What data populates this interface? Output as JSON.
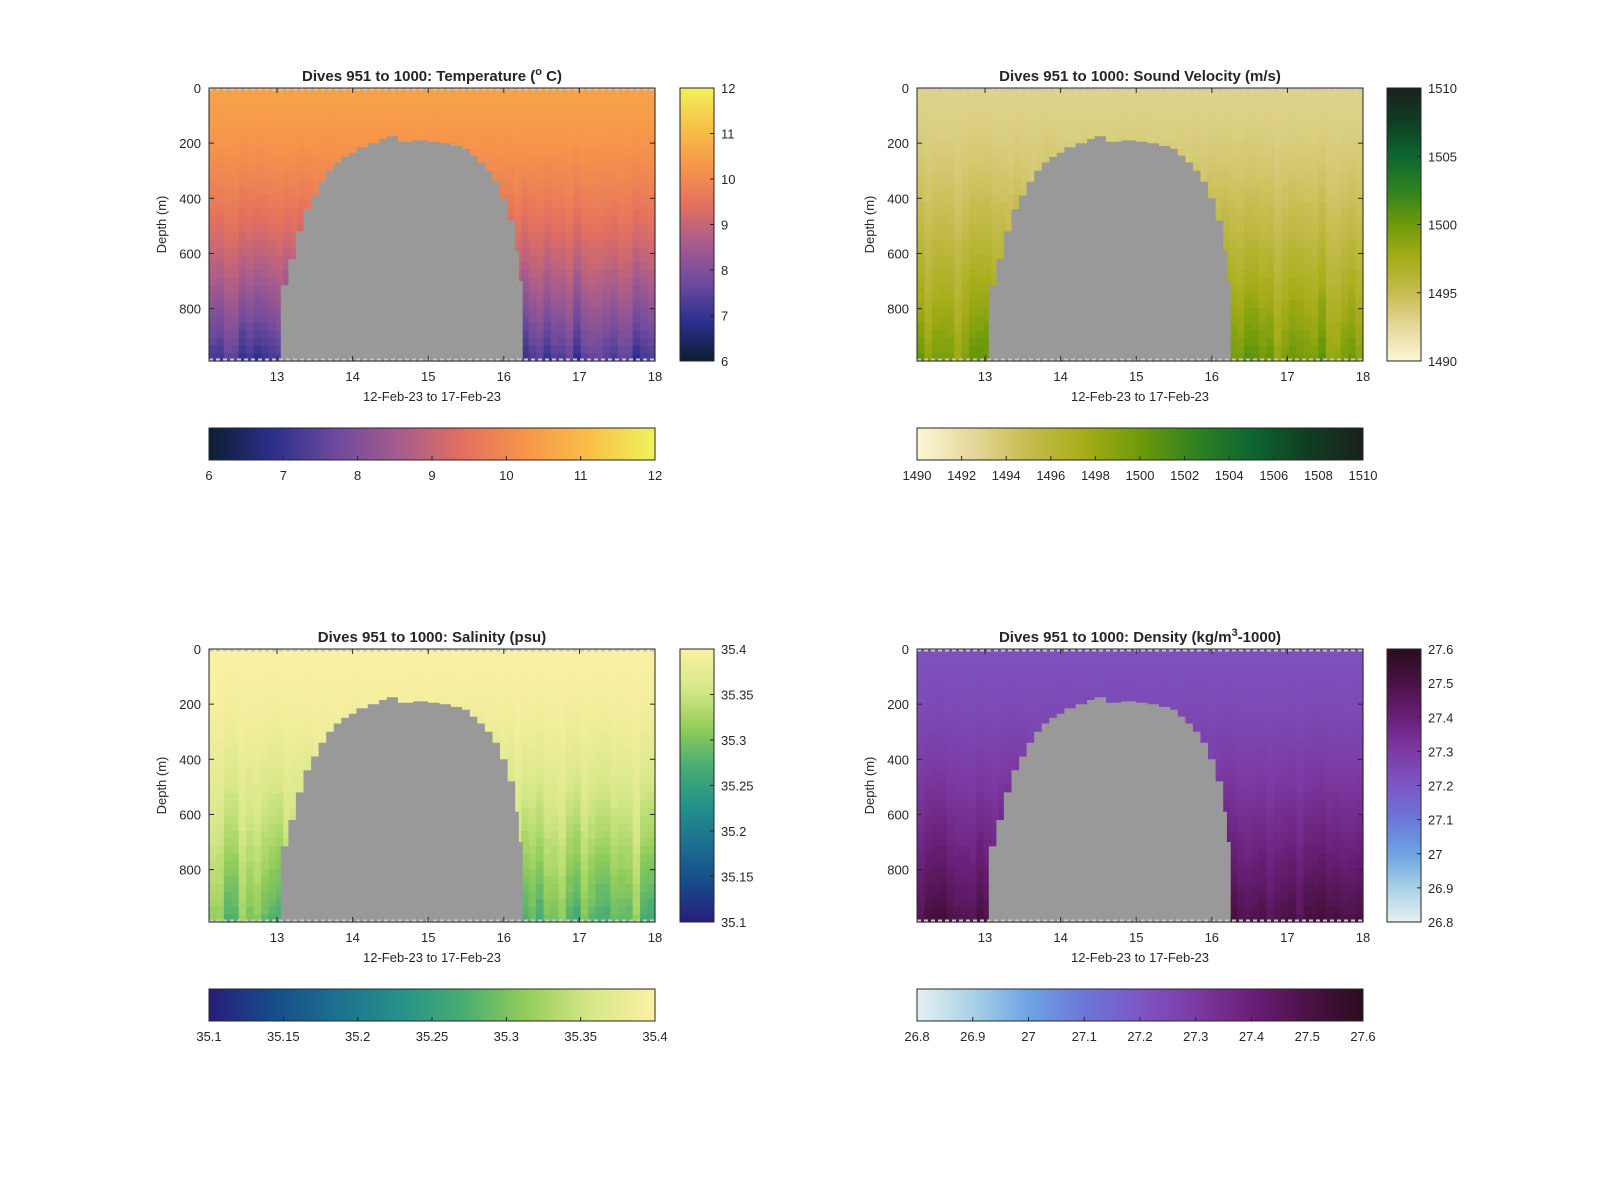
{
  "chart_data": [
    {
      "type": "heatmap",
      "title": "Dives 951 to 1000: Temperature (",
      "title_sup": "o",
      "title_tail": " C)",
      "xlabel": "12-Feb-23 to 17-Feb-23",
      "ylabel": "Depth (m)",
      "xlim": [
        12.1,
        18
      ],
      "ylim": [
        0,
        990
      ],
      "y_reversed": true,
      "xticks": [
        13,
        14,
        15,
        16,
        17,
        18
      ],
      "yticks": [
        0,
        200,
        400,
        600,
        800
      ],
      "colorbar": {
        "range": [
          6,
          12
        ],
        "ticks": [
          "6",
          "7",
          "8",
          "9",
          "10",
          "11",
          "12"
        ],
        "horiz_ticks": [
          "6",
          "7",
          "8",
          "9",
          "10",
          "11",
          "12"
        ],
        "colormap": [
          "#0b1e33",
          "#2c2f8c",
          "#6e4a9e",
          "#a85c8d",
          "#e3705f",
          "#f7964a",
          "#f8c148",
          "#eff35c"
        ]
      },
      "surface_value": 10.5,
      "deep_value": 7.2,
      "column_variation": 0.4
    },
    {
      "type": "heatmap",
      "title": "Dives 951 to 1000: Sound Velocity (m/s)",
      "xlabel": "12-Feb-23 to 17-Feb-23",
      "ylabel": "Depth (m)",
      "xlim": [
        12.1,
        18
      ],
      "ylim": [
        0,
        990
      ],
      "y_reversed": true,
      "xticks": [
        13,
        14,
        15,
        16,
        17,
        18
      ],
      "yticks": [
        0,
        200,
        400,
        600,
        800
      ],
      "colorbar": {
        "range": [
          1490,
          1510
        ],
        "ticks": [
          "1490",
          "1495",
          "1500",
          "1505",
          "1510"
        ],
        "horiz_ticks": [
          "1490",
          "1492",
          "1494",
          "1496",
          "1498",
          "1500",
          "1502",
          "1504",
          "1506",
          "1508",
          "1510"
        ],
        "colormap": [
          "#fcf6d6",
          "#e5d89b",
          "#c6bc4f",
          "#a6ad18",
          "#6f9a0a",
          "#2f8220",
          "#0e6630",
          "#0f3d22",
          "#1a211b"
        ]
      },
      "surface_value": 1493,
      "deep_value": 1499.5,
      "column_variation": 1.5
    },
    {
      "type": "heatmap",
      "title": "Dives 951 to 1000: Salinity (psu)",
      "xlabel": "12-Feb-23 to 17-Feb-23",
      "ylabel": "Depth (m)",
      "xlim": [
        12.1,
        18
      ],
      "ylim": [
        0,
        990
      ],
      "y_reversed": true,
      "xticks": [
        13,
        14,
        15,
        16,
        17,
        18
      ],
      "yticks": [
        0,
        200,
        400,
        600,
        800
      ],
      "colorbar": {
        "range": [
          35.1,
          35.4
        ],
        "ticks": [
          "35.1",
          "35.15",
          "35.2",
          "35.25",
          "35.3",
          "35.35",
          "35.4"
        ],
        "horiz_ticks": [
          "35.1",
          "35.15",
          "35.2",
          "35.25",
          "35.3",
          "35.35",
          "35.4"
        ],
        "colormap": [
          "#281d7a",
          "#174b8a",
          "#1c708f",
          "#24928a",
          "#49ad72",
          "#94ce59",
          "#d7e889",
          "#fbf0a3"
        ]
      },
      "surface_value": 35.4,
      "deep_value": 35.29,
      "column_variation": 0.03
    },
    {
      "type": "heatmap",
      "title": "Dives 951 to 1000: Density (kg/m",
      "title_sup": "3",
      "title_tail": "-1000)",
      "xlabel": "12-Feb-23 to 17-Feb-23",
      "ylabel": "Depth (m)",
      "xlim": [
        12.1,
        18
      ],
      "ylim": [
        0,
        990
      ],
      "y_reversed": true,
      "xticks": [
        13,
        14,
        15,
        16,
        17,
        18
      ],
      "yticks": [
        0,
        200,
        400,
        600,
        800
      ],
      "colorbar": {
        "range": [
          26.8,
          27.6
        ],
        "ticks": [
          "26.8",
          "26.9",
          "27",
          "27.1",
          "27.2",
          "27.3",
          "27.4",
          "27.5",
          "27.6"
        ],
        "horiz_ticks": [
          "26.8",
          "26.9",
          "27",
          "27.1",
          "27.2",
          "27.3",
          "27.4",
          "27.5",
          "27.6"
        ],
        "colormap": [
          "#e6f0f2",
          "#a9d1e6",
          "#6ea3e3",
          "#6b77d6",
          "#7d56c4",
          "#7c3aa3",
          "#6a1f78",
          "#4a1245",
          "#2a0d1f"
        ]
      },
      "surface_value": 27.22,
      "deep_value": 27.5,
      "column_variation": 0.04
    }
  ]
}
